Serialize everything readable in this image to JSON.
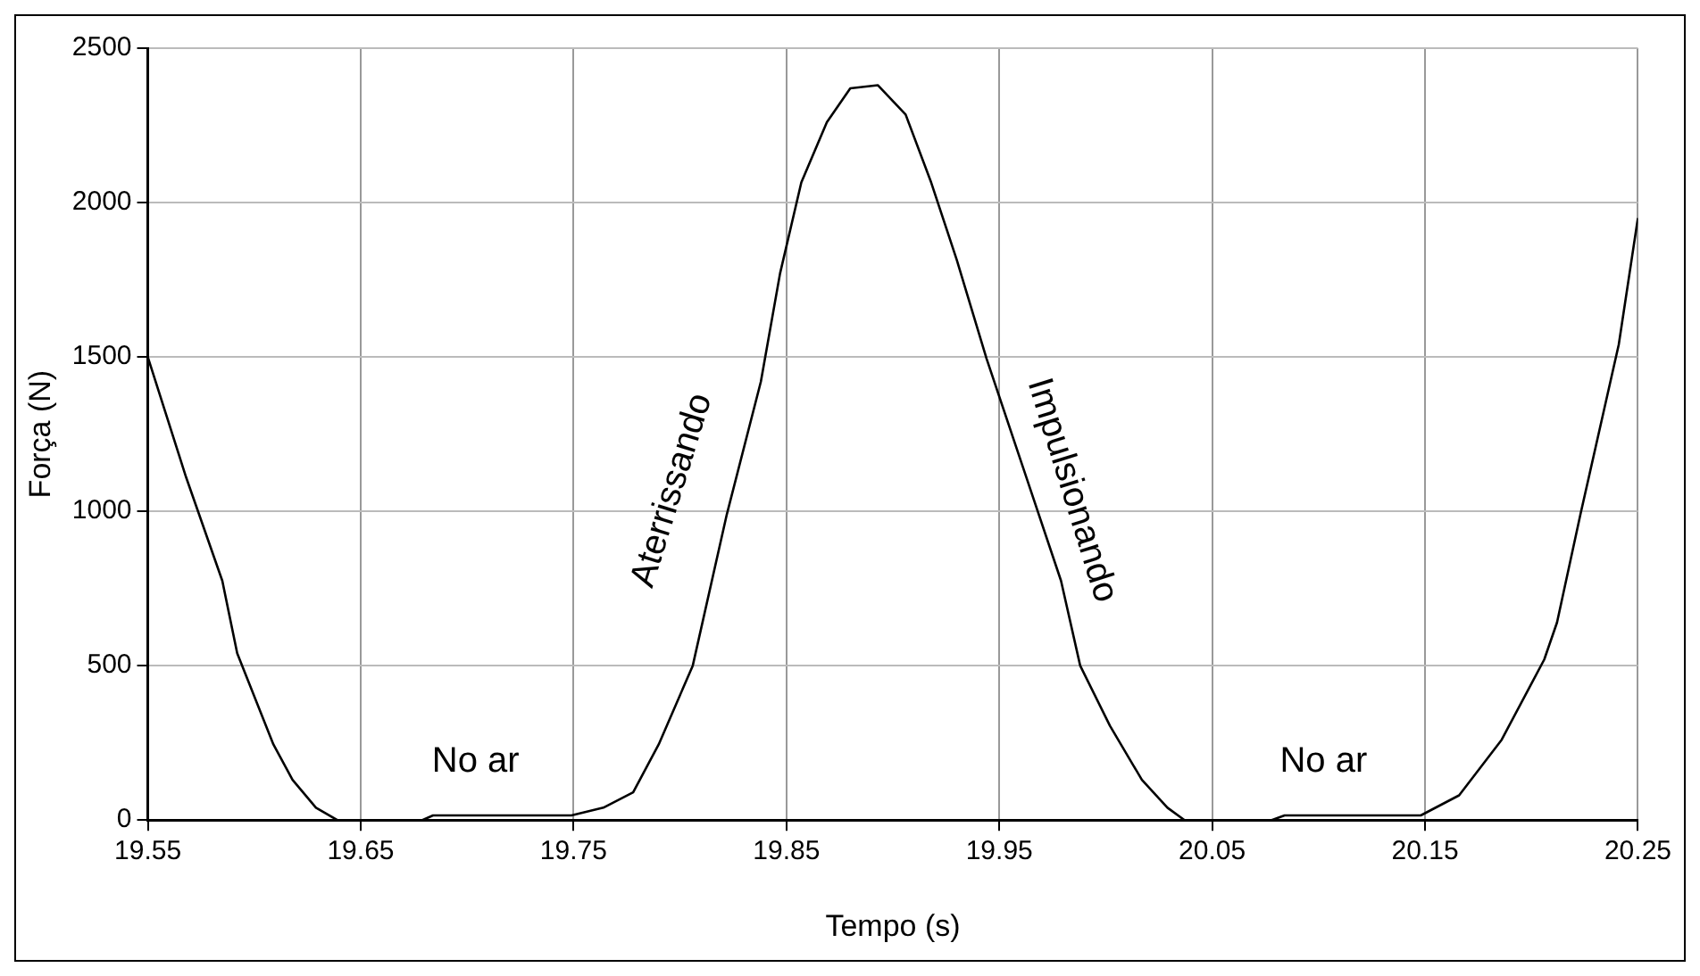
{
  "chart_data": {
    "type": "line",
    "xlabel": "Tempo (s)",
    "ylabel": "Força (N)",
    "xlim": [
      19.55,
      20.25
    ],
    "xticks": [
      {
        "value": 19.55,
        "label": "19.55"
      },
      {
        "value": 19.65,
        "label": "19.65"
      },
      {
        "value": 19.75,
        "label": "19.75"
      },
      {
        "value": 19.85,
        "label": "19.85"
      },
      {
        "value": 19.95,
        "label": "19.95"
      },
      {
        "value": 20.05,
        "label": "20.05"
      },
      {
        "value": 20.15,
        "label": "20.15"
      },
      {
        "value": 20.25,
        "label": "20.25"
      }
    ],
    "ylim": [
      0,
      2500
    ],
    "yticks": [
      0,
      500,
      1000,
      1500,
      2000,
      2500
    ],
    "grid": true,
    "legend": false,
    "marker": "none",
    "line_style": "solid",
    "series": [
      {
        "color": "#000000",
        "x": [
          19.55,
          19.568,
          19.585,
          19.592,
          19.609,
          19.618,
          19.629,
          19.639,
          19.679,
          19.684,
          19.749,
          19.764,
          19.778,
          19.79,
          19.806,
          19.822,
          19.838,
          19.847,
          19.857,
          19.869,
          19.88,
          19.893,
          19.906,
          19.918,
          19.93,
          19.944,
          19.961,
          19.979,
          19.988,
          20.002,
          20.017,
          20.029,
          20.037,
          20.078,
          20.084,
          20.148,
          20.166,
          20.186,
          20.206,
          20.212,
          20.223,
          20.241,
          20.25
        ],
        "values": [
          1500,
          1110,
          775,
          540,
          245,
          130,
          40,
          0,
          0,
          15,
          15,
          40,
          90,
          245,
          500,
          990,
          1420,
          1770,
          2065,
          2260,
          2370,
          2380,
          2285,
          2065,
          1815,
          1495,
          1145,
          775,
          500,
          305,
          130,
          40,
          0,
          0,
          15,
          15,
          80,
          260,
          520,
          640,
          990,
          1540,
          1950
        ]
      }
    ],
    "annotations": [
      "No ar",
      "Aterrissando",
      "Impulsionando",
      "No ar"
    ]
  }
}
